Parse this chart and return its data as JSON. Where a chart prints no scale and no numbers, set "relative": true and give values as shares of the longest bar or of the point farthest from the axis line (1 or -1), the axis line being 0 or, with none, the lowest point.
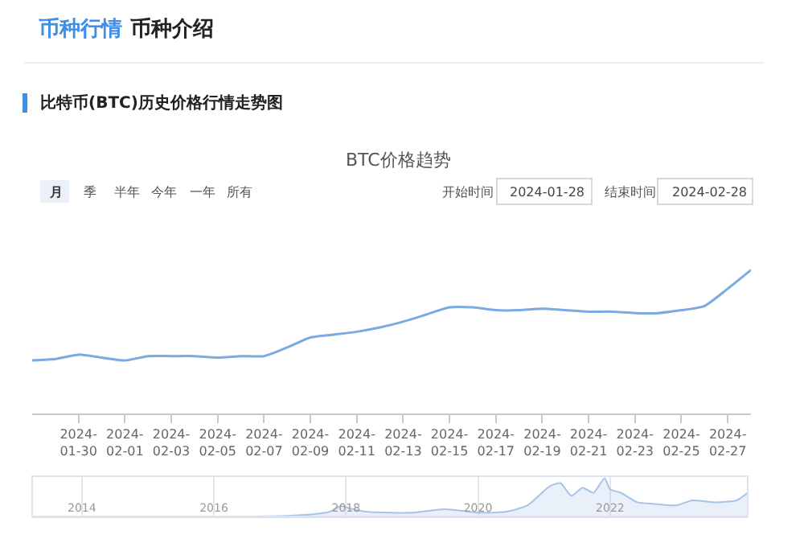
{
  "chart_data": [
    {
      "type": "line",
      "title": "BTC价格趋势",
      "relative": true,
      "color": "#7aaadf",
      "grid": false,
      "tick_labels": "x",
      "annotations": [
        "币种行情",
        "币种介绍",
        "比特币(BTC)历史价格行情走势图",
        "月",
        "季",
        "半年",
        "今年",
        "一年",
        "所有",
        "开始时间",
        "2024-01-28",
        "结束时间",
        "2024-02-28"
      ],
      "x": [
        "2024-01-28",
        "2024-01-29",
        "2024-01-30",
        "2024-01-31",
        "2024-02-01",
        "2024-02-02",
        "2024-02-03",
        "2024-02-04",
        "2024-02-05",
        "2024-02-06",
        "2024-02-07",
        "2024-02-08",
        "2024-02-09",
        "2024-02-10",
        "2024-02-11",
        "2024-02-12",
        "2024-02-13",
        "2024-02-14",
        "2024-02-15",
        "2024-02-16",
        "2024-02-17",
        "2024-02-18",
        "2024-02-19",
        "2024-02-20",
        "2024-02-21",
        "2024-02-22",
        "2024-02-23",
        "2024-02-24",
        "2024-02-25",
        "2024-02-26",
        "2024-02-27",
        "2024-02-28"
      ],
      "values": [
        0.37,
        0.38,
        0.41,
        0.39,
        0.37,
        0.4,
        0.4,
        0.4,
        0.39,
        0.4,
        0.4,
        0.46,
        0.53,
        0.55,
        0.57,
        0.6,
        0.64,
        0.69,
        0.74,
        0.74,
        0.72,
        0.72,
        0.73,
        0.72,
        0.71,
        0.71,
        0.7,
        0.7,
        0.72,
        0.75,
        0.87,
        1.0
      ],
      "xlim": [
        "2024-01-28",
        "2024-02-28"
      ],
      "xticks": [
        {
          "value": "2024-01-30",
          "label": "2024-01-30"
        },
        {
          "value": "2024-02-01",
          "label": "2024-02-01"
        },
        {
          "value": "2024-02-03",
          "label": "2024-02-03"
        },
        {
          "value": "2024-02-05",
          "label": "2024-02-05"
        },
        {
          "value": "2024-02-07",
          "label": "2024-02-07"
        },
        {
          "value": "2024-02-09",
          "label": "2024-02-09"
        },
        {
          "value": "2024-02-11",
          "label": "2024-02-11"
        },
        {
          "value": "2024-02-13",
          "label": "2024-02-13"
        },
        {
          "value": "2024-02-15",
          "label": "2024-02-15"
        },
        {
          "value": "2024-02-17",
          "label": "2024-02-17"
        },
        {
          "value": "2024-02-19",
          "label": "2024-02-19"
        },
        {
          "value": "2024-02-21",
          "label": "2024-02-21"
        },
        {
          "value": "2024-02-23",
          "label": "2024-02-23"
        },
        {
          "value": "2024-02-25",
          "label": "2024-02-25"
        },
        {
          "value": "2024-02-27",
          "label": "2024-02-27"
        }
      ]
    },
    {
      "type": "area",
      "relative": true,
      "color": "#a7c4e6",
      "grid": "x",
      "tick_labels": "x",
      "x": [
        "2013-04",
        "2017-03",
        "2017-10",
        "2017-12",
        "2018-02",
        "2018-05",
        "2019-01",
        "2019-07",
        "2020-01",
        "2020-06",
        "2020-10",
        "2021-02",
        "2021-04",
        "2021-06",
        "2021-08",
        "2021-10",
        "2021-12",
        "2022-01",
        "2022-03",
        "2022-06",
        "2022-09",
        "2023-01",
        "2023-04",
        "2023-08",
        "2023-12",
        "2024-02"
      ],
      "values": [
        0,
        0.02,
        0.12,
        0.27,
        0.2,
        0.12,
        0.1,
        0.19,
        0.1,
        0.12,
        0.29,
        0.79,
        0.87,
        0.54,
        0.75,
        0.62,
        1.0,
        0.71,
        0.62,
        0.37,
        0.33,
        0.29,
        0.42,
        0.37,
        0.42,
        0.62
      ],
      "xlim": [
        "2013-04",
        "2024-02"
      ],
      "xticks": [
        {
          "value": "2014",
          "label": "2014"
        },
        {
          "value": "2016",
          "label": "2016"
        },
        {
          "value": "2018",
          "label": "2018"
        },
        {
          "value": "2020",
          "label": "2020"
        },
        {
          "value": "2022",
          "label": "2022"
        }
      ]
    }
  ]
}
